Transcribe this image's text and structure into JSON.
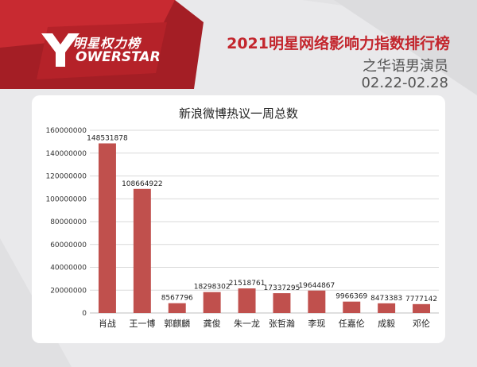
{
  "brand": {
    "name_cn": "明星权力榜",
    "name_en": "OWERSTAR",
    "accent": "#c3262d"
  },
  "header": {
    "title": "2021明星网络影响力指数排行榜",
    "subtitle": "之华语男演员",
    "date_range": "02.22-02.28"
  },
  "chart_data": {
    "type": "bar",
    "title": "新浪微博热议一周总数",
    "categories": [
      "肖战",
      "王一博",
      "郭麒麟",
      "龚俊",
      "朱一龙",
      "张哲瀚",
      "李现",
      "任嘉伦",
      "成毅",
      "邓伦"
    ],
    "values": [
      148531878,
      108664922,
      8567796,
      18298302,
      21518761,
      17337295,
      19644867,
      9966369,
      8473383,
      7777142
    ],
    "ylim": [
      0,
      160000000
    ],
    "yticks": [
      0,
      20000000,
      40000000,
      60000000,
      80000000,
      100000000,
      120000000,
      140000000,
      160000000
    ],
    "grid": true,
    "bar_color": "#c0504d"
  }
}
